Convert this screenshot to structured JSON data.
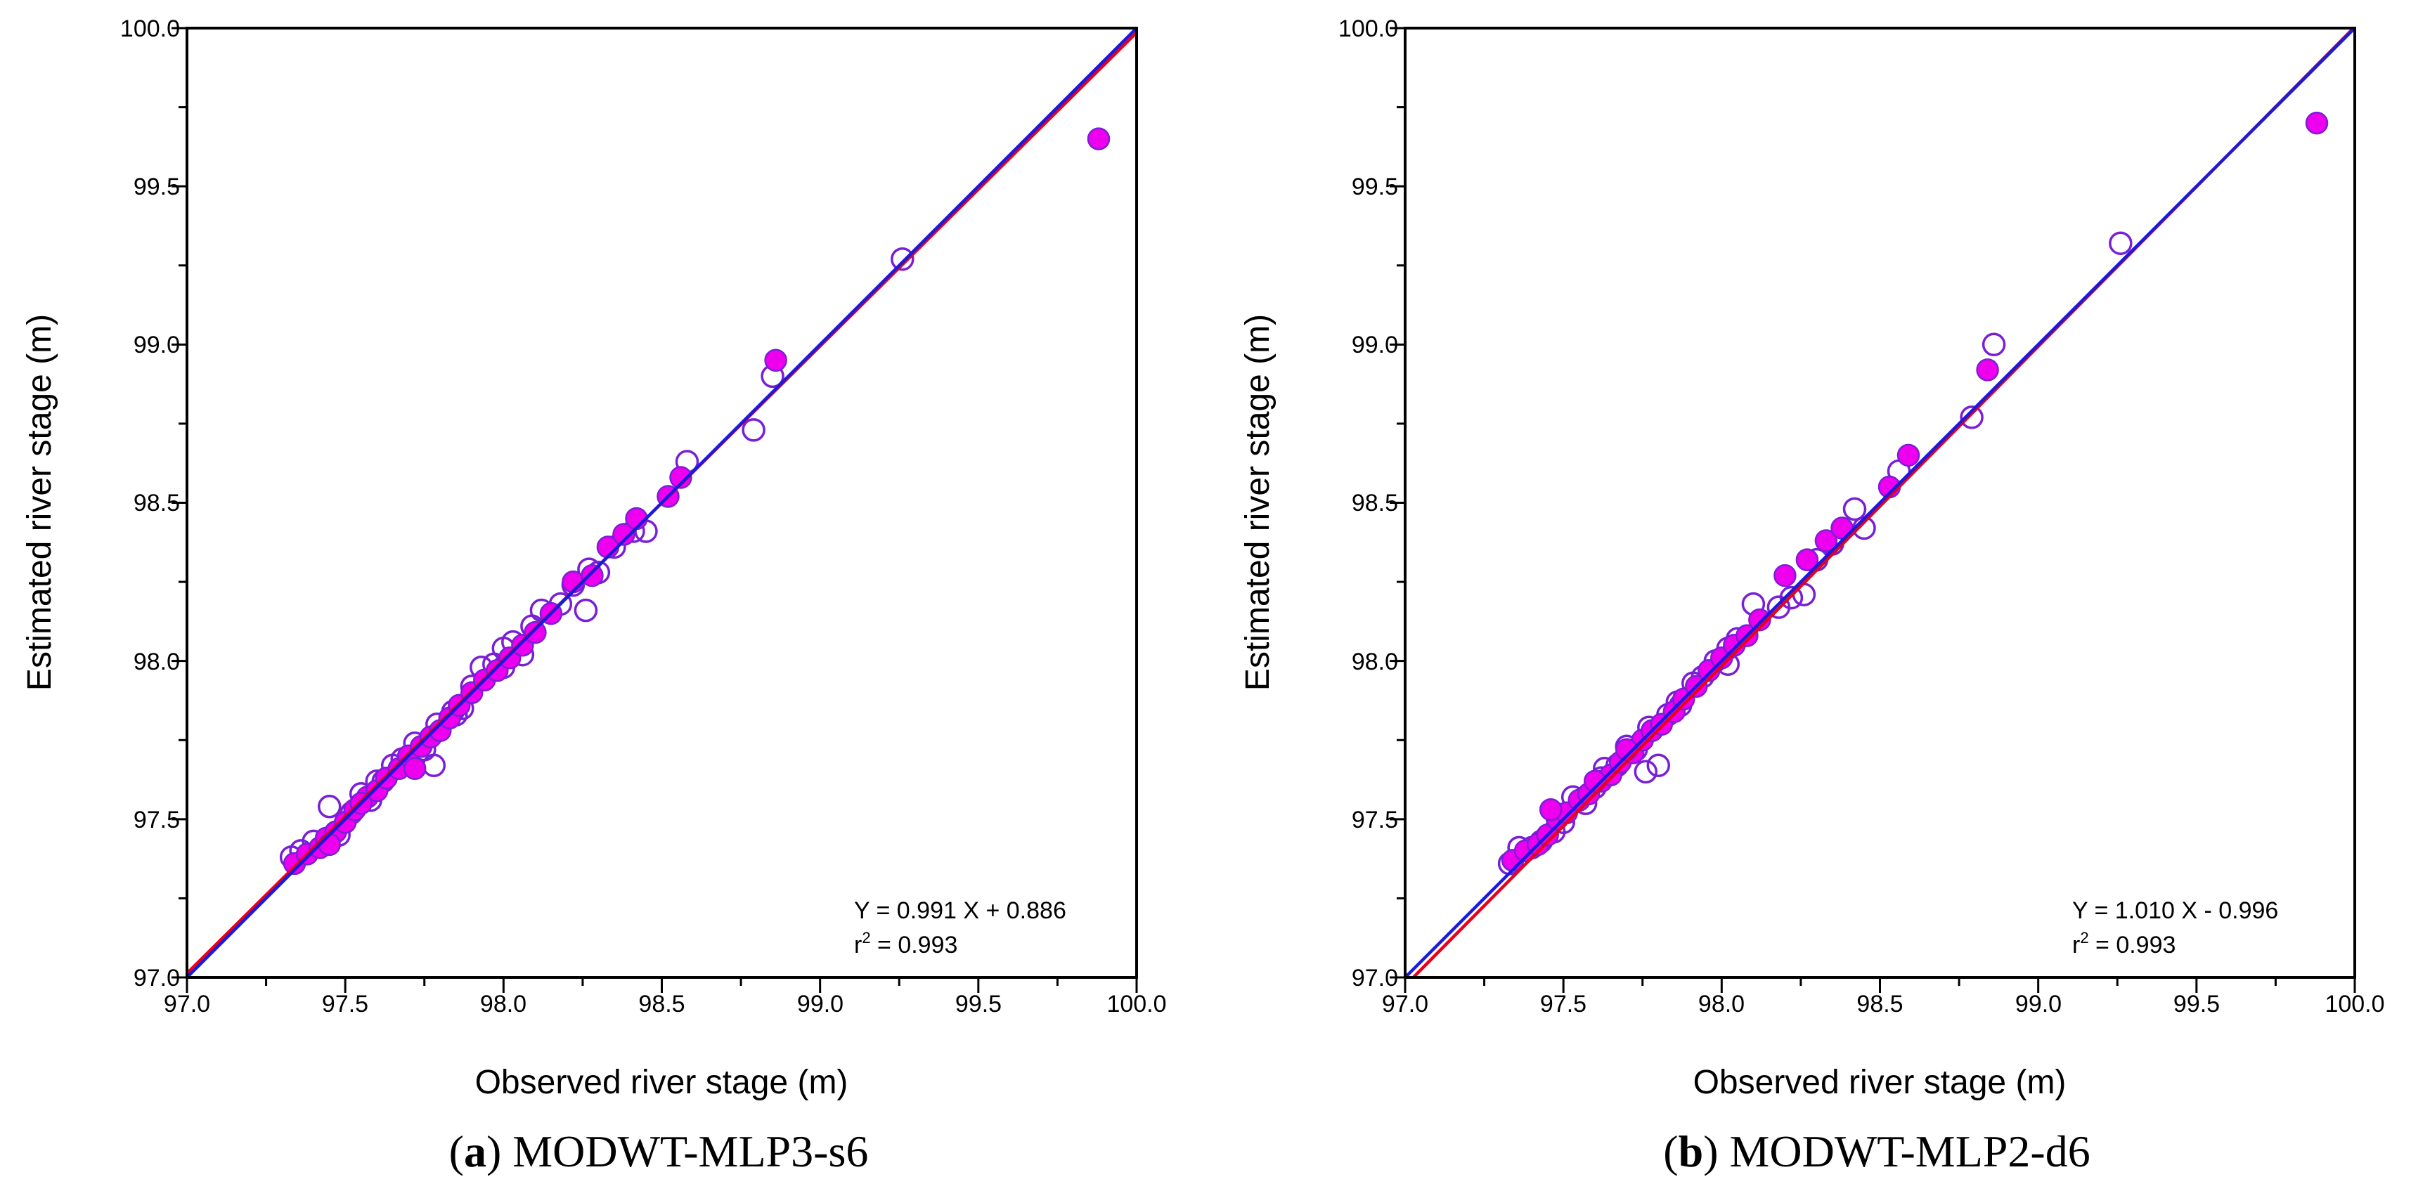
{
  "chart_data": [
    {
      "type": "scatter",
      "caption": {
        "letter": "a",
        "model": "MODWT-MLP3-s6"
      },
      "xlabel": "Observed river stage (m)",
      "ylabel": "Estimated river stage (m)",
      "xlim": [
        97.0,
        100.0
      ],
      "ylim": [
        97.0,
        100.0
      ],
      "xticks": [
        "97.0",
        "97.5",
        "98.0",
        "98.5",
        "99.0",
        "99.5",
        "100.0"
      ],
      "yticks": [
        "97.0",
        "97.5",
        "98.0",
        "98.5",
        "99.0",
        "99.5",
        "100.0"
      ],
      "equation": "Y = 0.991 X + 0.886",
      "r2_prefix": "r",
      "r2_exp": "2",
      "r2_value": " = 0.993",
      "fit_line": {
        "slope": 0.991,
        "intercept": 0.886,
        "color": "#e8001c"
      },
      "identity_line": {
        "slope": 1.0,
        "intercept": 0.0,
        "color": "#1a1adc"
      },
      "marker_color": "#ee00ee",
      "marker_edge": "#7a1fd6",
      "series": [
        {
          "name": "filled",
          "points": [
            [
              97.34,
              97.36
            ],
            [
              97.38,
              97.39
            ],
            [
              97.42,
              97.41
            ],
            [
              97.44,
              97.44
            ],
            [
              97.47,
              97.46
            ],
            [
              97.5,
              97.49
            ],
            [
              97.53,
              97.53
            ],
            [
              97.57,
              97.57
            ],
            [
              97.6,
              97.59
            ],
            [
              97.63,
              97.63
            ],
            [
              97.67,
              97.66
            ],
            [
              97.7,
              97.7
            ],
            [
              97.74,
              97.73
            ],
            [
              97.77,
              97.76
            ],
            [
              97.8,
              97.78
            ],
            [
              97.83,
              97.82
            ],
            [
              97.86,
              97.86
            ],
            [
              97.9,
              97.9
            ],
            [
              97.94,
              97.94
            ],
            [
              97.98,
              97.97
            ],
            [
              98.02,
              98.01
            ],
            [
              98.06,
              98.05
            ],
            [
              98.1,
              98.09
            ],
            [
              98.15,
              98.15
            ],
            [
              98.22,
              98.25
            ],
            [
              98.28,
              98.27
            ],
            [
              98.33,
              98.36
            ],
            [
              98.38,
              98.4
            ],
            [
              98.42,
              98.45
            ],
            [
              98.52,
              98.52
            ],
            [
              98.56,
              98.58
            ],
            [
              98.86,
              98.95
            ],
            [
              99.88,
              99.65
            ],
            [
              97.45,
              97.42
            ],
            [
              97.55,
              97.55
            ],
            [
              97.72,
              97.66
            ]
          ]
        },
        {
          "name": "open",
          "points": [
            [
              97.33,
              97.38
            ],
            [
              97.36,
              97.4
            ],
            [
              97.4,
              97.43
            ],
            [
              97.45,
              97.54
            ],
            [
              97.48,
              97.45
            ],
            [
              97.52,
              97.52
            ],
            [
              97.55,
              97.58
            ],
            [
              97.58,
              97.56
            ],
            [
              97.62,
              97.62
            ],
            [
              97.65,
              97.67
            ],
            [
              97.68,
              97.69
            ],
            [
              97.72,
              97.74
            ],
            [
              97.75,
              97.72
            ],
            [
              97.78,
              97.67
            ],
            [
              97.79,
              97.8
            ],
            [
              97.84,
              97.84
            ],
            [
              97.87,
              97.85
            ],
            [
              97.9,
              97.92
            ],
            [
              97.93,
              97.98
            ],
            [
              97.97,
              97.99
            ],
            [
              98.0,
              97.98
            ],
            [
              98.03,
              98.06
            ],
            [
              98.06,
              98.02
            ],
            [
              98.09,
              98.11
            ],
            [
              98.12,
              98.16
            ],
            [
              98.18,
              98.18
            ],
            [
              98.22,
              98.24
            ],
            [
              98.26,
              98.16
            ],
            [
              98.27,
              98.29
            ],
            [
              98.3,
              98.28
            ],
            [
              98.35,
              98.36
            ],
            [
              98.41,
              98.41
            ],
            [
              98.45,
              98.41
            ],
            [
              98.58,
              98.63
            ],
            [
              98.79,
              98.73
            ],
            [
              98.85,
              98.9
            ],
            [
              99.26,
              99.27
            ],
            [
              97.6,
              97.62
            ],
            [
              97.85,
              97.83
            ],
            [
              98.0,
              98.04
            ]
          ]
        }
      ]
    },
    {
      "type": "scatter",
      "caption": {
        "letter": "b",
        "model": "MODWT-MLP2-d6"
      },
      "xlabel": "Observed river stage (m)",
      "ylabel": "Estimated river stage (m)",
      "xlim": [
        97.0,
        100.0
      ],
      "ylim": [
        97.0,
        100.0
      ],
      "xticks": [
        "97.0",
        "97.5",
        "98.0",
        "98.5",
        "99.0",
        "99.5",
        "100.0"
      ],
      "yticks": [
        "97.0",
        "97.5",
        "98.0",
        "98.5",
        "99.0",
        "99.5",
        "100.0"
      ],
      "equation": "Y = 1.010 X - 0.996",
      "r2_prefix": "r",
      "r2_exp": "2",
      "r2_value": " = 0.993",
      "fit_line": {
        "slope": 1.01,
        "intercept": -0.996,
        "color": "#e8001c"
      },
      "identity_line": {
        "slope": 1.0,
        "intercept": 0.0,
        "color": "#1a1adc"
      },
      "marker_color": "#ee00ee",
      "marker_edge": "#7a1fd6",
      "series": [
        {
          "name": "filled",
          "points": [
            [
              97.34,
              97.37
            ],
            [
              97.38,
              97.4
            ],
            [
              97.42,
              97.42
            ],
            [
              97.45,
              97.45
            ],
            [
              97.48,
              97.5
            ],
            [
              97.51,
              97.52
            ],
            [
              97.55,
              97.56
            ],
            [
              97.58,
              97.58
            ],
            [
              97.62,
              97.62
            ],
            [
              97.65,
              97.64
            ],
            [
              97.68,
              97.68
            ],
            [
              97.72,
              97.71
            ],
            [
              97.75,
              97.75
            ],
            [
              97.78,
              97.78
            ],
            [
              97.81,
              97.8
            ],
            [
              97.85,
              97.84
            ],
            [
              97.88,
              97.88
            ],
            [
              97.92,
              97.92
            ],
            [
              97.96,
              97.97
            ],
            [
              98.0,
              98.01
            ],
            [
              98.04,
              98.05
            ],
            [
              98.08,
              98.08
            ],
            [
              98.12,
              98.13
            ],
            [
              98.2,
              98.27
            ],
            [
              98.27,
              98.32
            ],
            [
              98.33,
              98.38
            ],
            [
              98.38,
              98.42
            ],
            [
              98.53,
              98.55
            ],
            [
              98.59,
              98.65
            ],
            [
              98.84,
              98.92
            ],
            [
              99.88,
              99.7
            ],
            [
              97.46,
              97.53
            ],
            [
              97.6,
              97.62
            ],
            [
              97.7,
              97.72
            ]
          ]
        },
        {
          "name": "open",
          "points": [
            [
              97.33,
              97.36
            ],
            [
              97.36,
              97.41
            ],
            [
              97.4,
              97.41
            ],
            [
              97.43,
              97.43
            ],
            [
              97.47,
              97.46
            ],
            [
              97.5,
              97.49
            ],
            [
              97.53,
              97.57
            ],
            [
              97.57,
              97.55
            ],
            [
              97.6,
              97.6
            ],
            [
              97.63,
              97.66
            ],
            [
              97.67,
              97.67
            ],
            [
              97.7,
              97.73
            ],
            [
              97.73,
              97.72
            ],
            [
              97.76,
              97.65
            ],
            [
              97.77,
              97.79
            ],
            [
              97.8,
              97.67
            ],
            [
              97.83,
              97.83
            ],
            [
              97.87,
              97.86
            ],
            [
              97.91,
              97.93
            ],
            [
              97.94,
              97.95
            ],
            [
              97.98,
              98.0
            ],
            [
              98.02,
              97.99
            ],
            [
              98.05,
              98.07
            ],
            [
              98.1,
              98.18
            ],
            [
              98.18,
              98.17
            ],
            [
              98.22,
              98.2
            ],
            [
              98.26,
              98.21
            ],
            [
              98.3,
              98.32
            ],
            [
              98.35,
              98.37
            ],
            [
              98.42,
              98.48
            ],
            [
              98.45,
              98.42
            ],
            [
              98.56,
              98.6
            ],
            [
              98.79,
              98.77
            ],
            [
              98.86,
              99.0
            ],
            [
              99.26,
              99.32
            ],
            [
              97.62,
              97.63
            ],
            [
              97.86,
              97.87
            ],
            [
              98.02,
              98.04
            ]
          ]
        }
      ]
    }
  ]
}
